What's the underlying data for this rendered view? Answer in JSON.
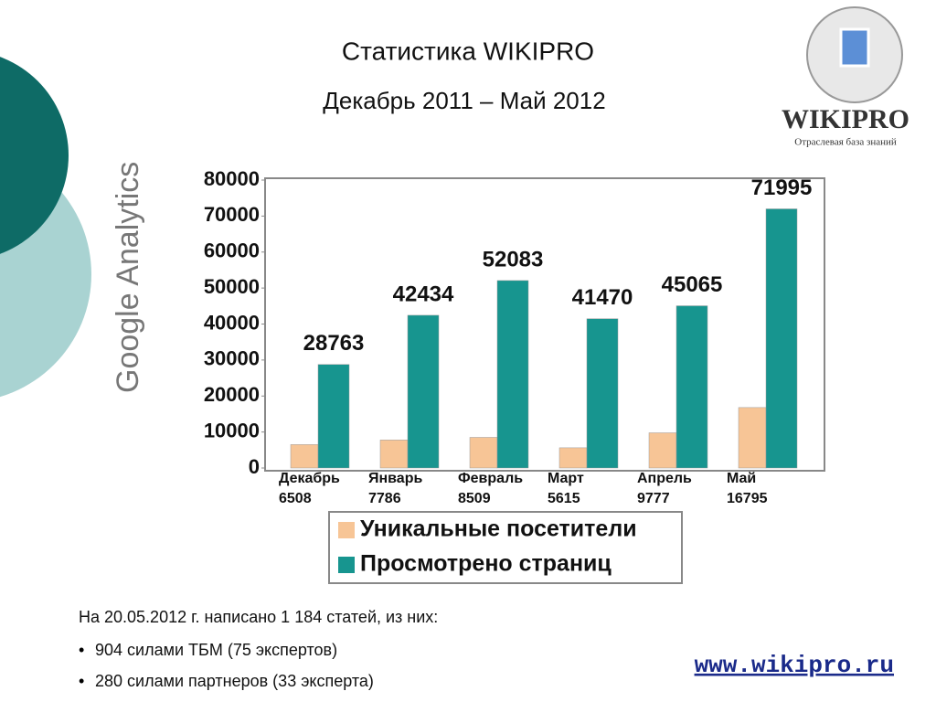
{
  "chart_data": {
    "type": "bar",
    "title": "Статистика WIKIPRO",
    "subtitle": "Декабрь 2011 – Май 2012",
    "categories": [
      "Декабрь",
      "Январь",
      "Февраль",
      "Март",
      "Апрель",
      "Май"
    ],
    "series": [
      {
        "name": "Уникальные посетители",
        "color": "#f7c596",
        "values": [
          6508,
          7786,
          8509,
          5615,
          9777,
          16795
        ]
      },
      {
        "name": "Просмотрено страниц",
        "color": "#17958f",
        "values": [
          28763,
          42434,
          52083,
          41470,
          45065,
          71995
        ]
      }
    ],
    "ylim": [
      0,
      80000
    ],
    "yticks": [
      0,
      10000,
      20000,
      30000,
      40000,
      50000,
      60000,
      70000,
      80000
    ],
    "grid": false,
    "legend": "bottom"
  },
  "slide": {
    "logo_title": "WIKIPRO",
    "logo_subtitle": "Отраслевая база знаний",
    "side_label": "Google Analytics",
    "note": "На 20.05.2012 г. написано 1 184 статей, из них:",
    "bullets": [
      "904 силами ТБМ (75 экспертов)",
      "280 силами партнеров (33 эксперта)"
    ],
    "url": "www.wikipro.ru"
  }
}
